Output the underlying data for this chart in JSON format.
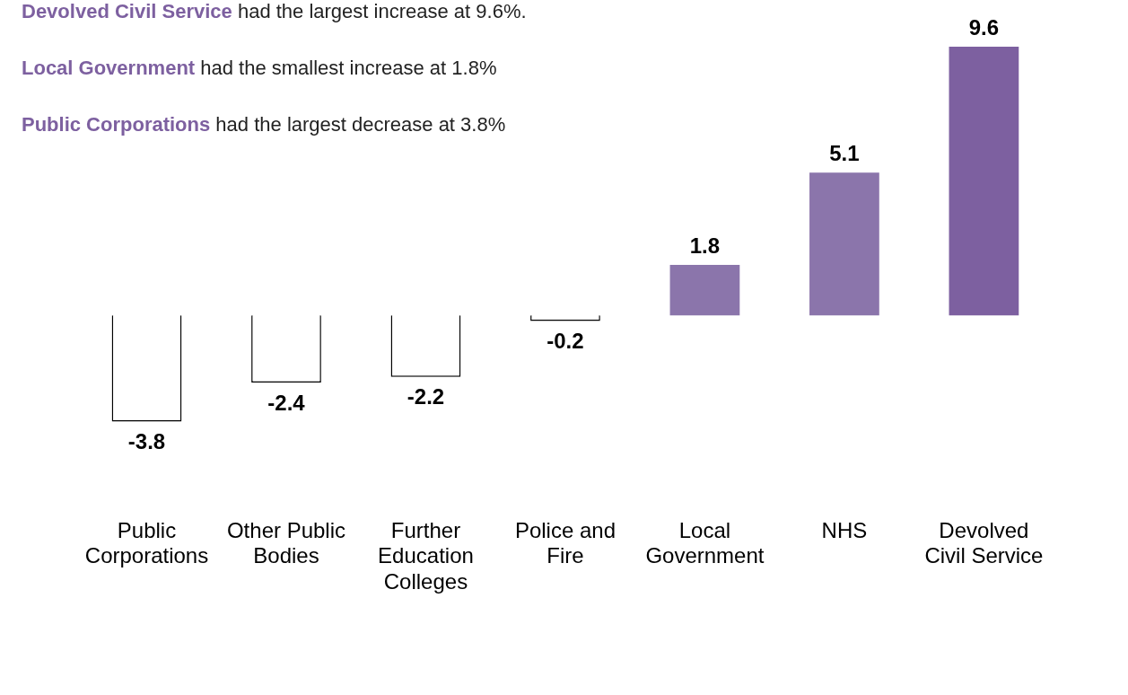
{
  "chart_data": {
    "type": "bar",
    "categories": [
      "Public Corporations",
      "Other Public Bodies",
      "Further Education Colleges",
      "Police and Fire",
      "Local Government",
      "NHS",
      "Devolved Civil Service"
    ],
    "values": [
      -3.8,
      -2.4,
      -2.2,
      -0.2,
      1.8,
      5.1,
      9.6
    ],
    "colors": [
      "#ffffff",
      "#ffffff",
      "#ffffff",
      "#ffffff",
      "#8b75ab",
      "#8b75ab",
      "#7d60a0"
    ],
    "data_labels": true,
    "annotations": [
      "Devolved Civil Service had the largest increase at 9.6%.",
      "Local Government had the smallest increase at 1.8%",
      "Public Corporations had the largest decrease at 3.8%"
    ],
    "legend": false,
    "grid": false
  }
}
